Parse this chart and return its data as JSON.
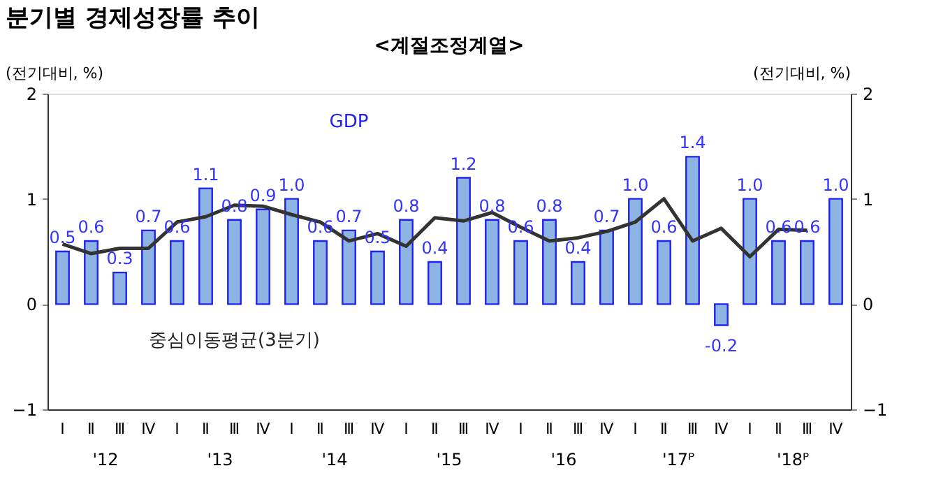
{
  "chart_data": {
    "type": "bar",
    "title": "분기별 경제성장률 추이",
    "subtitle": "<계절조정계열>",
    "ylabel": "(전기대비, %)",
    "y2label": "(전기대비, %)",
    "categories": [
      "Ⅰ",
      "Ⅱ",
      "Ⅲ",
      "Ⅳ",
      "Ⅰ",
      "Ⅱ",
      "Ⅲ",
      "Ⅳ",
      "Ⅰ",
      "Ⅱ",
      "Ⅲ",
      "Ⅳ",
      "Ⅰ",
      "Ⅱ",
      "Ⅲ",
      "Ⅳ",
      "Ⅰ",
      "Ⅱ",
      "Ⅲ",
      "Ⅳ",
      "Ⅰ",
      "Ⅱ",
      "Ⅲ",
      "Ⅳ",
      "Ⅰ",
      "Ⅱ",
      "Ⅲ",
      "Ⅳ"
    ],
    "series": [
      {
        "name": "GDP",
        "color": "#8db4e2",
        "values": [
          0.5,
          0.6,
          0.3,
          0.7,
          0.6,
          1.1,
          0.8,
          0.9,
          1.0,
          0.6,
          0.7,
          0.5,
          0.8,
          0.4,
          1.2,
          0.8,
          0.6,
          0.8,
          0.4,
          0.7,
          1.0,
          0.6,
          1.4,
          -0.2,
          1.0,
          0.6,
          0.6,
          1.0
        ],
        "value_labels": [
          "0.5",
          "0.6",
          "0.3",
          "0.7",
          "0.6",
          "1.1",
          "0.8",
          "0.9",
          "1.0",
          "0.6",
          "0.7",
          "0.5",
          "0.8",
          "0.4",
          "1.2",
          "0.8",
          "0.6",
          "0.8",
          "0.4",
          "0.7",
          "1.0",
          "0.6",
          "1.4",
          "-0.2",
          "1.0",
          "0.6",
          "0.6",
          "1.0"
        ]
      },
      {
        "name": "중심이동평균(3분기)",
        "type": "line",
        "color": "#333333",
        "values": [
          0.57,
          0.48,
          0.53,
          0.53,
          0.78,
          0.83,
          0.94,
          0.93,
          0.85,
          0.78,
          0.6,
          0.67,
          0.55,
          0.82,
          0.79,
          0.87,
          0.73,
          0.6,
          0.63,
          0.69,
          0.78,
          1.0,
          0.6,
          0.72,
          0.45,
          0.71,
          0.7,
          null
        ]
      }
    ],
    "annotations": [
      "'12",
      "'13",
      "'14",
      "'15",
      "'16",
      "'17ᴾ",
      "'18ᴾ"
    ],
    "ylim": [
      -1,
      2
    ],
    "yticks": [
      -1,
      0,
      1,
      2
    ],
    "y2lim": [
      -1,
      2
    ],
    "y2ticks": [
      -1,
      0,
      1,
      2
    ],
    "grid": false
  }
}
